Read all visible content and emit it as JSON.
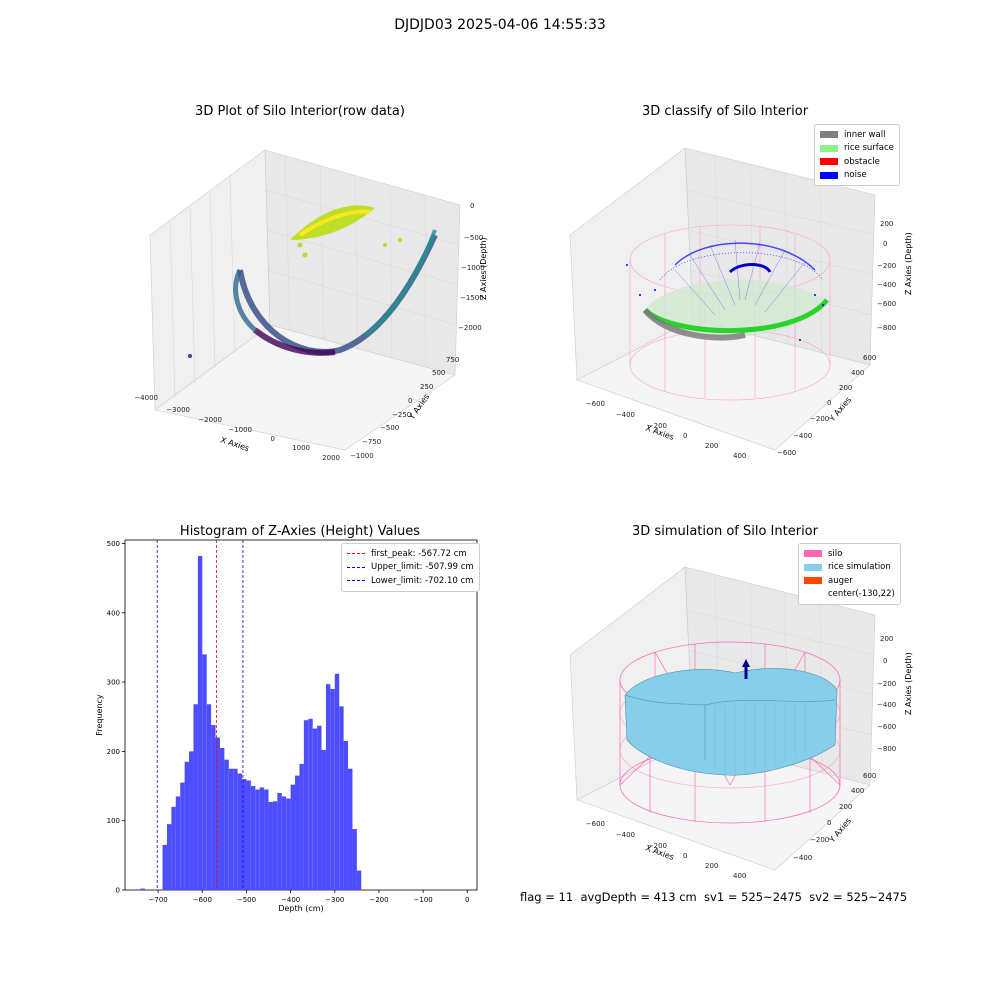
{
  "figure": {
    "suptitle": "DJDJD03 2025-04-06 14:55:33",
    "footer": "flag = 11  avgDepth = 413 cm  sv1 = 525~2475  sv2 = 525~2475"
  },
  "chart_data": [
    {
      "type": "scatter",
      "projection": "3d",
      "title": "3D Plot of Silo Interior(row data)",
      "xlabel": "X Axies",
      "ylabel": "Y Axies",
      "zlabel": "Z Axies (Depth)",
      "xticks": [
        "−4000",
        "−3000",
        "−2000",
        "−1000",
        "0",
        "1000",
        "2000"
      ],
      "yticks": [
        "−1000",
        "−750",
        "−500",
        "−250",
        "0",
        "250",
        "500",
        "750"
      ],
      "zticks": [
        "0",
        "−500",
        "−1000",
        "−1500",
        "−2000"
      ],
      "xlim": [
        -4200,
        2100
      ],
      "ylim": [
        -1000,
        800
      ],
      "zlim": [
        -2400,
        100
      ],
      "colormap": "viridis"
    },
    {
      "type": "scatter",
      "projection": "3d",
      "title": "3D classify of Silo Interior",
      "xlabel": "X Axies",
      "ylabel": "Y Axies",
      "zlabel": "Z Axies (Depth)",
      "xticks": [
        "−600",
        "−400",
        "−200",
        "0",
        "200",
        "400"
      ],
      "yticks": [
        "−600",
        "−400",
        "−200",
        "0",
        "200",
        "400",
        "600"
      ],
      "zticks": [
        "200",
        "0",
        "−200",
        "−400",
        "−600",
        "−800"
      ],
      "legend": [
        {
          "label": "inner wall",
          "color": "#808080"
        },
        {
          "label": "rice surface",
          "color": "#90ee90"
        },
        {
          "label": "obstacle",
          "color": "#ff0000"
        },
        {
          "label": "noise",
          "color": "#0000ff"
        }
      ]
    },
    {
      "type": "bar",
      "title": "Histogram of Z-Axies (Height) Values",
      "xlabel": "Depth (cm)",
      "ylabel": "Frequency",
      "bin_start": -740,
      "bin_width": 10,
      "values": [
        2,
        0,
        0,
        0,
        0,
        65,
        95,
        120,
        135,
        155,
        185,
        200,
        268,
        482,
        340,
        268,
        238,
        220,
        205,
        188,
        175,
        175,
        168,
        160,
        158,
        150,
        145,
        148,
        145,
        127,
        128,
        140,
        135,
        132,
        152,
        165,
        182,
        245,
        247,
        233,
        237,
        202,
        297,
        290,
        312,
        265,
        215,
        175,
        88,
        28
      ],
      "xlim": [
        -775,
        22
      ],
      "ylim": [
        0,
        505
      ],
      "xticks": [
        -700,
        -600,
        -500,
        -400,
        -300,
        -200,
        -100,
        0
      ],
      "xtick_labels": [
        "−700",
        "−600",
        "−500",
        "−400",
        "−300",
        "−200",
        "−100",
        "0"
      ],
      "yticks": [
        0,
        100,
        200,
        300,
        400,
        500
      ],
      "ytick_labels": [
        "0",
        "100",
        "200",
        "300",
        "400",
        "500"
      ],
      "bar_color": "#4d4dff",
      "vlines": [
        {
          "x": -567.72,
          "color": "#ff0000",
          "label": "first_peak: -567.72 cm"
        },
        {
          "x": -507.99,
          "color": "#0000ff",
          "label": "Upper_limit: -507.99 cm"
        },
        {
          "x": -702.1,
          "color": "#0000ff",
          "label": "Lower_limit: -702.10 cm"
        }
      ]
    },
    {
      "type": "surface",
      "projection": "3d",
      "title": "3D simulation of Silo Interior",
      "xlabel": "X Axies",
      "ylabel": "Y Axies",
      "zlabel": "Z Axies (Depth)",
      "xticks": [
        "−600",
        "−400",
        "−200",
        "0",
        "200",
        "400"
      ],
      "yticks": [
        "−400",
        "−200",
        "0",
        "200",
        "400",
        "600"
      ],
      "zticks": [
        "200",
        "0",
        "−200",
        "−400",
        "−600",
        "−800"
      ],
      "legend": [
        {
          "label": "silo",
          "color": "#ff69b4"
        },
        {
          "label": "rice simulation",
          "color": "#87ceeb"
        },
        {
          "label": "auger",
          "color": "#ff4500"
        },
        {
          "label": "center(-130,22)",
          "color": ""
        }
      ]
    }
  ]
}
